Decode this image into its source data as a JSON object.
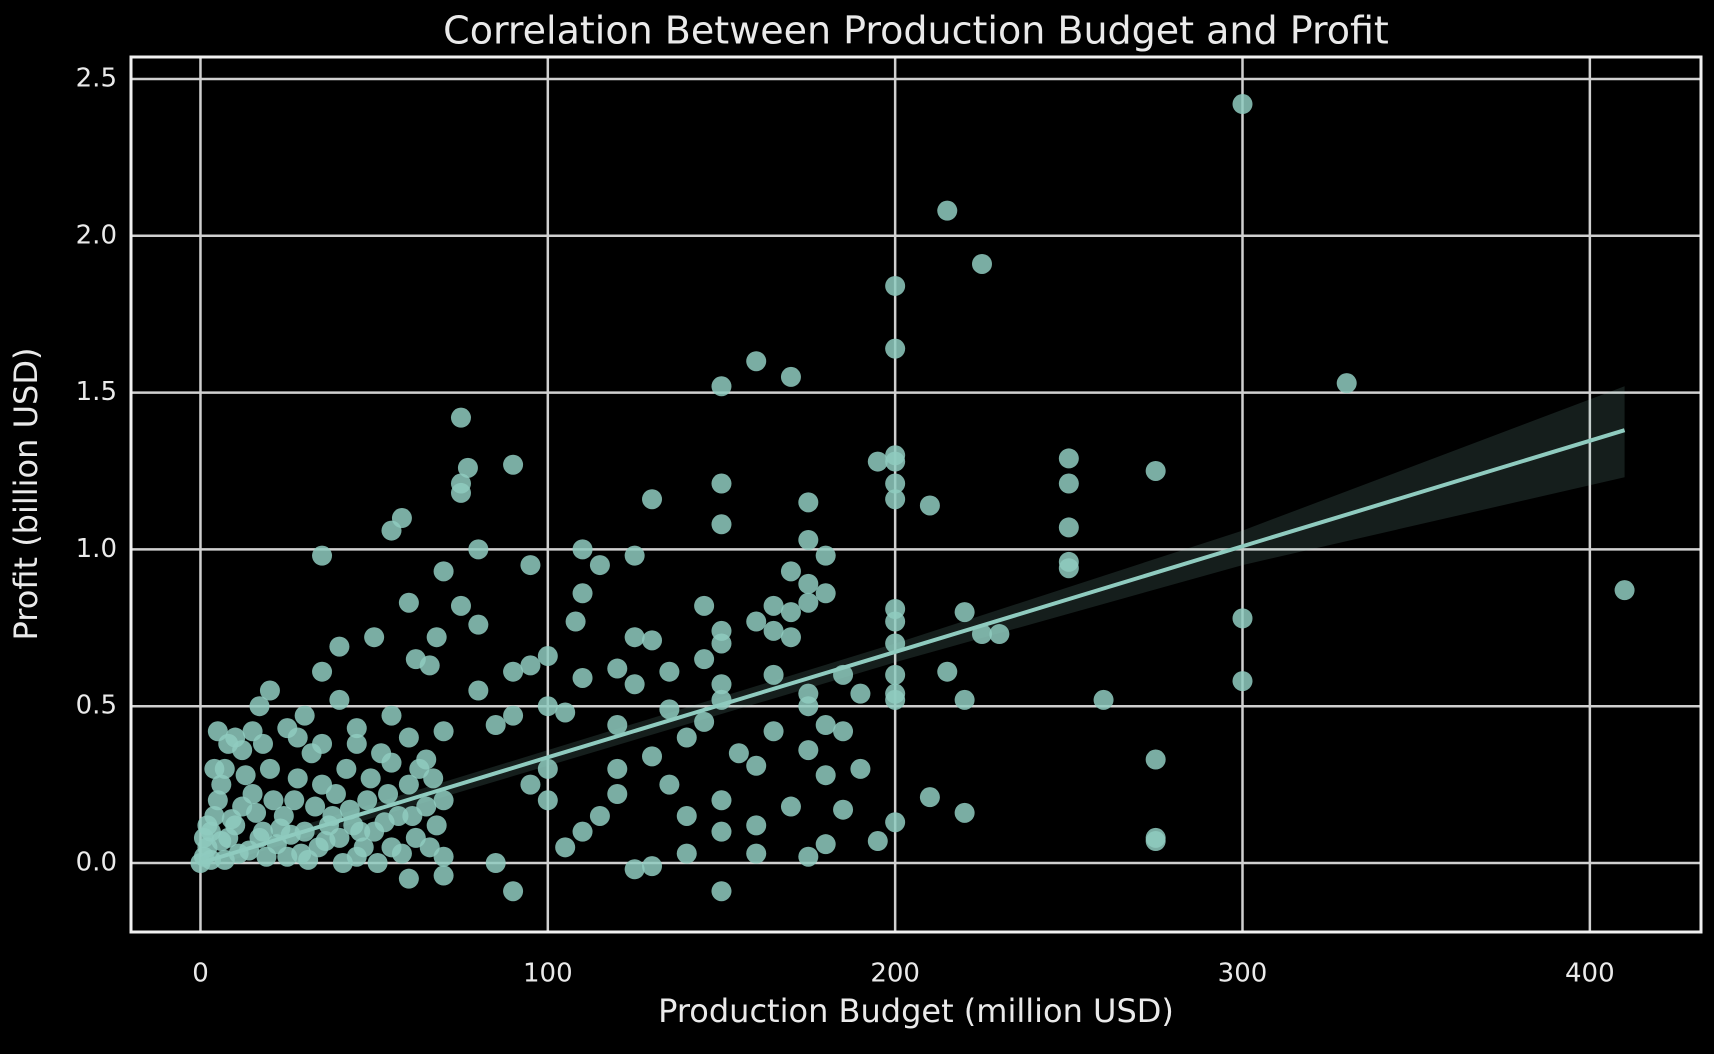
{
  "chart_data": {
    "type": "scatter",
    "title": "Correlation Between Production Budget and Profit",
    "x_label": "Production Budget (million USD)",
    "y_label": "Profit (billion USD)",
    "color": "#8fcbbf",
    "grid": true,
    "xlim": [
      -20,
      432
    ],
    "ylim": [
      -0.22,
      2.57
    ],
    "xticks": [
      0,
      100,
      200,
      300,
      400
    ],
    "yticks": [
      {
        "value": 0,
        "label": "0.0"
      },
      0.5,
      {
        "value": 1,
        "label": "1.0"
      },
      1.5,
      {
        "value": 2,
        "label": "2.0"
      },
      2.5
    ],
    "x": [
      300,
      215,
      225,
      200,
      200,
      160,
      170,
      150,
      330,
      75,
      200,
      200,
      195,
      250,
      275,
      90,
      77,
      75,
      75,
      150,
      250,
      200,
      175,
      200,
      130,
      210,
      58,
      55,
      150,
      250,
      175,
      35,
      80,
      110,
      125,
      180,
      250,
      250,
      95,
      115,
      70,
      170,
      410,
      175,
      110,
      180,
      60,
      75,
      145,
      165,
      200,
      220,
      170,
      175,
      200,
      300,
      108,
      160,
      80,
      230,
      225,
      150,
      165,
      170,
      125,
      130,
      50,
      68,
      40,
      150,
      200,
      100,
      145,
      62,
      66,
      35,
      90,
      215,
      185,
      200,
      300,
      95,
      110,
      120,
      135,
      165,
      125,
      150,
      175,
      190,
      200,
      220,
      260,
      150,
      20,
      17,
      40,
      80,
      100,
      105,
      135,
      175,
      200,
      90,
      30,
      55,
      145,
      185,
      5,
      15,
      25,
      45,
      60,
      70,
      85,
      120,
      140,
      165,
      180,
      275,
      130,
      155,
      175,
      100,
      120,
      160,
      180,
      190,
      210,
      220,
      200,
      195,
      275,
      275,
      180,
      175,
      150,
      90,
      125,
      130,
      160,
      140,
      105,
      110,
      85,
      60,
      70,
      150,
      160,
      140,
      120,
      100,
      115,
      95,
      135,
      150,
      170,
      185,
      0,
      1,
      2,
      3,
      4,
      5,
      6,
      7,
      8,
      10,
      12,
      14,
      15,
      18,
      20,
      22,
      24,
      25,
      27,
      30,
      32,
      34,
      35,
      38,
      40,
      42,
      44,
      45,
      48,
      50,
      52,
      55,
      57,
      60,
      62,
      65,
      68,
      70,
      70,
      3,
      6,
      9,
      11,
      13,
      16,
      19,
      21,
      23,
      26,
      28,
      31,
      33,
      36,
      39,
      41,
      43,
      46,
      49,
      51,
      54,
      58,
      63,
      66,
      2,
      4,
      8,
      10,
      12,
      18,
      28,
      35,
      45,
      55,
      65,
      1,
      7,
      17,
      29,
      37,
      47,
      53,
      61,
      67
    ],
    "values": [
      2.42,
      2.08,
      1.91,
      1.84,
      1.64,
      1.6,
      1.55,
      1.52,
      1.53,
      1.42,
      1.3,
      1.28,
      1.28,
      1.29,
      1.25,
      1.27,
      1.26,
      1.21,
      1.18,
      1.21,
      1.21,
      1.21,
      1.15,
      1.16,
      1.16,
      1.14,
      1.1,
      1.06,
      1.08,
      1.07,
      1.03,
      0.98,
      1,
      1,
      0.98,
      0.98,
      0.96,
      0.94,
      0.95,
      0.95,
      0.93,
      0.93,
      0.87,
      0.89,
      0.86,
      0.86,
      0.83,
      0.82,
      0.82,
      0.82,
      0.81,
      0.8,
      0.8,
      0.83,
      0.77,
      0.78,
      0.77,
      0.77,
      0.76,
      0.73,
      0.73,
      0.74,
      0.74,
      0.72,
      0.72,
      0.71,
      0.72,
      0.72,
      0.69,
      0.7,
      0.7,
      0.66,
      0.65,
      0.65,
      0.63,
      0.61,
      0.61,
      0.61,
      0.6,
      0.6,
      0.58,
      0.63,
      0.59,
      0.62,
      0.61,
      0.6,
      0.57,
      0.57,
      0.54,
      0.54,
      0.54,
      0.52,
      0.52,
      0.52,
      0.55,
      0.5,
      0.52,
      0.55,
      0.5,
      0.48,
      0.49,
      0.5,
      0.52,
      0.47,
      0.47,
      0.47,
      0.45,
      0.42,
      0.42,
      0.42,
      0.43,
      0.43,
      0.4,
      0.42,
      0.44,
      0.44,
      0.4,
      0.42,
      0.44,
      0.33,
      0.34,
      0.35,
      0.36,
      0.3,
      0.3,
      0.31,
      0.28,
      0.3,
      0.21,
      0.16,
      0.13,
      0.07,
      0.08,
      0.07,
      0.06,
      0.02,
      -0.09,
      -0.09,
      -0.02,
      -0.01,
      0.03,
      0.03,
      0.05,
      0.1,
      0,
      -0.05,
      -0.04,
      0.1,
      0.12,
      0.15,
      0.22,
      0.2,
      0.15,
      0.25,
      0.25,
      0.2,
      0.18,
      0.17,
      0,
      0.02,
      0.05,
      0.1,
      0.15,
      0.2,
      0.25,
      0.3,
      0.08,
      0.12,
      0.18,
      0.04,
      0.22,
      0.1,
      0.3,
      0.06,
      0.15,
      0.02,
      0.2,
      0.1,
      0.35,
      0.05,
      0.25,
      0.15,
      0.08,
      0.3,
      0.12,
      0.02,
      0.2,
      0.1,
      0.35,
      0.05,
      0.15,
      0.25,
      0.08,
      0.18,
      0.12,
      0.02,
      0.2,
      0.01,
      0.07,
      0.14,
      0.03,
      0.28,
      0.16,
      0.02,
      0.2,
      0.11,
      0.09,
      0.27,
      0.01,
      0.18,
      0.07,
      0.22,
      0,
      0.17,
      0.1,
      0.27,
      0,
      0.22,
      0.03,
      0.3,
      0.05,
      0.12,
      0.3,
      0.38,
      0.4,
      0.36,
      0.38,
      0.4,
      0.38,
      0.38,
      0.32,
      0.33,
      0.08,
      0.01,
      0.08,
      0.03,
      0.12,
      0.05,
      0.13,
      0.15,
      0.27
    ],
    "fit": {
      "x": [
        0,
        100,
        200,
        300,
        410
      ],
      "values": [
        0,
        0.337,
        0.673,
        1.01,
        1.38
      ],
      "lower": [
        -0.02,
        0.31,
        0.64,
        0.95,
        1.23
      ],
      "upper": [
        0.02,
        0.36,
        0.7,
        1.06,
        1.52
      ]
    }
  }
}
